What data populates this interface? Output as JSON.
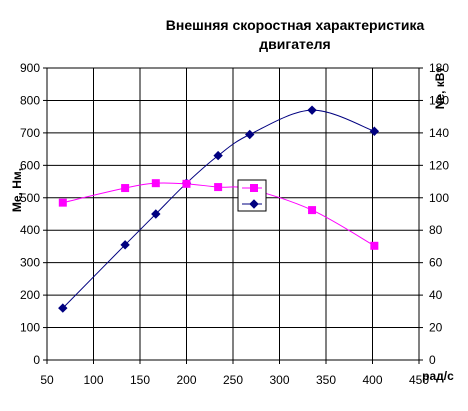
{
  "chart_data": {
    "type": "line",
    "title": [
      "Внешняя скоростная характеристика",
      "двигателя"
    ],
    "xlabel": "рад/с",
    "ylabel_left": "Me, Нм,",
    "ylabel_right": "Ne, кВт",
    "xlim": [
      50,
      450
    ],
    "ylim_left": [
      0,
      900
    ],
    "ylim_right": [
      0,
      180
    ],
    "x_ticks": [
      50,
      100,
      150,
      200,
      250,
      300,
      350,
      400,
      450
    ],
    "y_ticks_left": [
      0,
      100,
      200,
      300,
      400,
      500,
      600,
      700,
      800,
      900
    ],
    "y_ticks_right": [
      0,
      20,
      40,
      60,
      80,
      100,
      120,
      140,
      160,
      180
    ],
    "grid": true,
    "legend_position": "center-right",
    "series": [
      {
        "axis": "right",
        "color": "#000080",
        "marker": "diamond",
        "x": [
          67,
          134,
          167,
          200,
          234,
          268,
          335,
          402
        ],
        "values": [
          32,
          71,
          90,
          109,
          126,
          139,
          154,
          141
        ]
      },
      {
        "axis": "left",
        "color": "#ff00ff",
        "marker": "square",
        "x": [
          67,
          134,
          167,
          200,
          234,
          268,
          335,
          402
        ],
        "values": [
          485,
          530,
          545,
          543,
          533,
          527,
          462,
          352
        ]
      }
    ]
  }
}
